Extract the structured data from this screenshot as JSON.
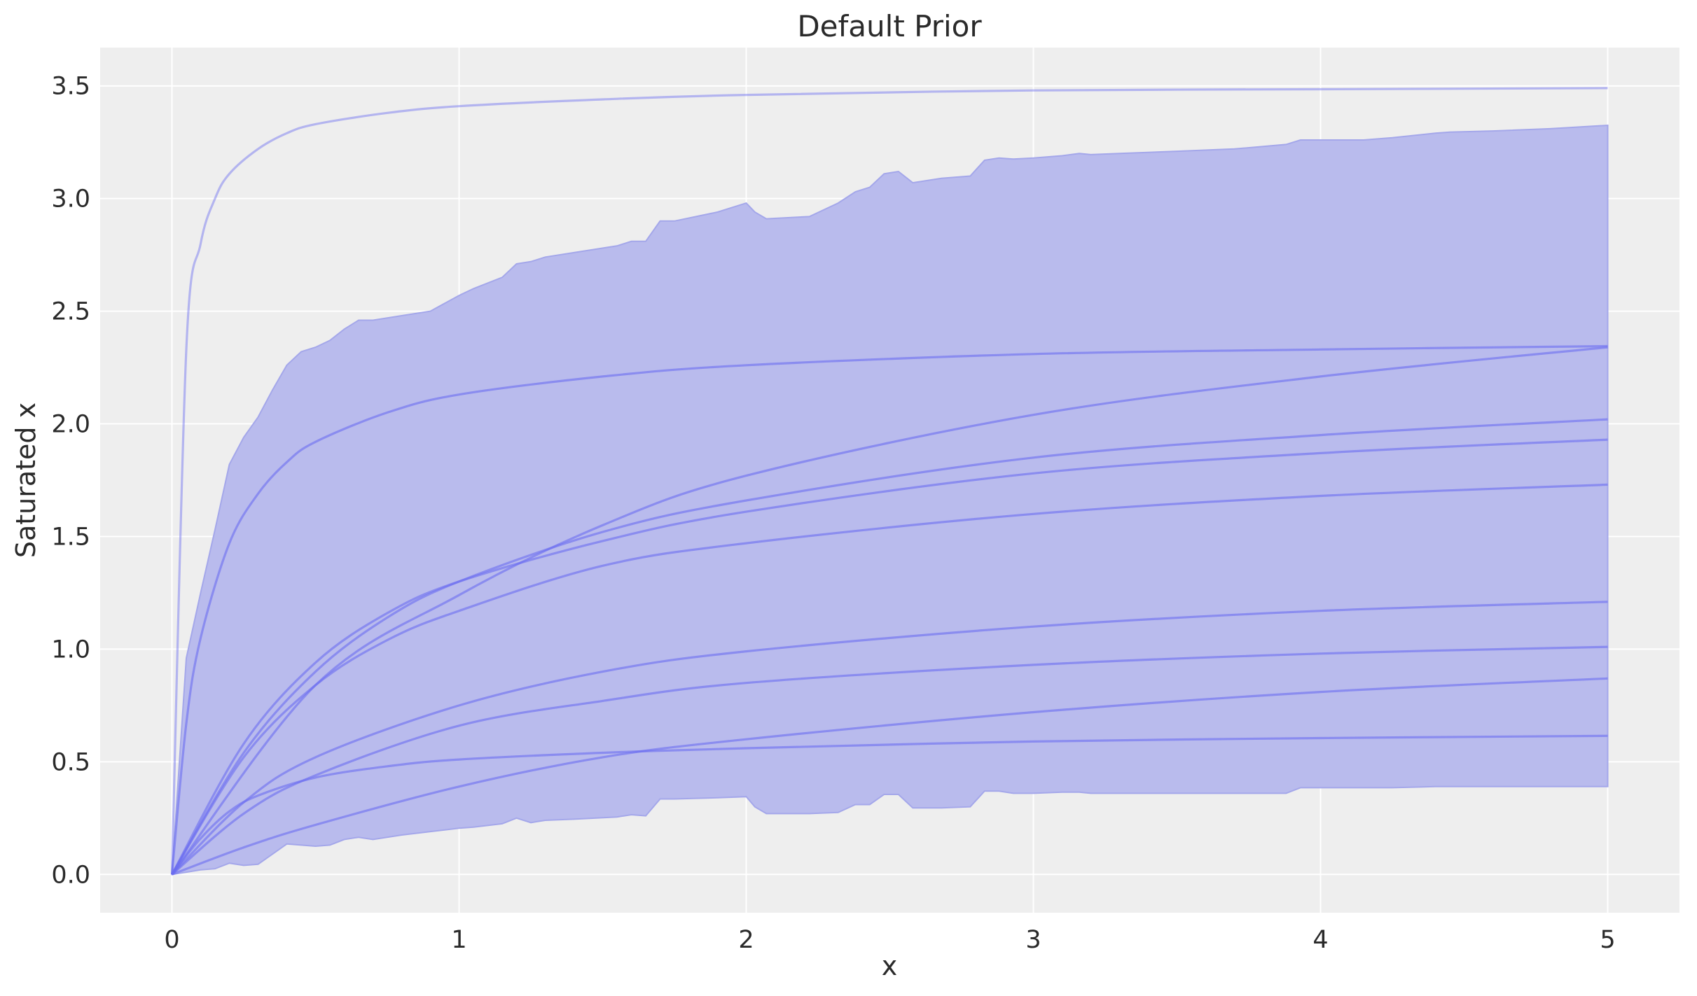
{
  "chart_data": {
    "type": "line",
    "title": "Default Prior",
    "xlabel": "x",
    "ylabel": "Saturated x",
    "xlim": [
      -0.25,
      5.25
    ],
    "ylim": [
      -0.17,
      3.67
    ],
    "grid": true,
    "x_ticks": [
      {
        "value": 0,
        "label": "0"
      },
      {
        "value": 1,
        "label": "1"
      },
      {
        "value": 2,
        "label": "2"
      },
      {
        "value": 3,
        "label": "3"
      },
      {
        "value": 4,
        "label": "4"
      },
      {
        "value": 5,
        "label": "5"
      }
    ],
    "y_ticks": [
      {
        "value": 0.0,
        "label": "0.0"
      },
      {
        "value": 0.5,
        "label": "0.5"
      },
      {
        "value": 1.0,
        "label": "1.0"
      },
      {
        "value": 1.5,
        "label": "1.5"
      },
      {
        "value": 2.0,
        "label": "2.0"
      },
      {
        "value": 2.5,
        "label": "2.5"
      },
      {
        "value": 3.0,
        "label": "3.0"
      },
      {
        "value": 3.5,
        "label": "3.5"
      }
    ],
    "colors": {
      "plot_background": "#eeeeee",
      "grid": "#ffffff",
      "band_fill": "#b9bbed",
      "band_edge": "#a4a7ea",
      "line": "#6b6cf0"
    },
    "band": {
      "x": [
        0,
        0.05,
        0.1,
        0.15,
        0.2,
        0.25,
        0.3,
        0.35,
        0.4,
        0.45,
        0.5,
        0.55,
        0.6,
        0.65,
        0.7,
        0.8,
        0.9,
        1.0,
        1.05,
        1.15,
        1.2,
        1.25,
        1.3,
        1.4,
        1.55,
        1.6,
        1.65,
        1.7,
        1.75,
        1.9,
        2.0,
        2.03,
        2.07,
        2.22,
        2.32,
        2.38,
        2.43,
        2.48,
        2.53,
        2.58,
        2.68,
        2.78,
        2.83,
        2.88,
        2.93,
        3.0,
        3.1,
        3.16,
        3.2,
        3.3,
        3.5,
        3.7,
        3.88,
        3.93,
        4.15,
        4.25,
        4.4,
        4.45,
        4.6,
        4.8,
        5.0
      ],
      "upper": [
        0,
        0.96,
        1.25,
        1.53,
        1.82,
        1.94,
        2.03,
        2.15,
        2.26,
        2.32,
        2.34,
        2.37,
        2.42,
        2.46,
        2.46,
        2.48,
        2.5,
        2.57,
        2.6,
        2.65,
        2.71,
        2.72,
        2.74,
        2.76,
        2.79,
        2.81,
        2.81,
        2.9,
        2.9,
        2.94,
        2.98,
        2.94,
        2.91,
        2.92,
        2.98,
        3.03,
        3.05,
        3.11,
        3.12,
        3.07,
        3.09,
        3.1,
        3.17,
        3.18,
        3.175,
        3.18,
        3.19,
        3.2,
        3.195,
        3.2,
        3.21,
        3.22,
        3.24,
        3.26,
        3.26,
        3.27,
        3.29,
        3.295,
        3.3,
        3.31,
        3.325
      ],
      "lower": [
        0,
        0.01,
        0.02,
        0.025,
        0.05,
        0.04,
        0.045,
        0.09,
        0.135,
        0.13,
        0.125,
        0.13,
        0.155,
        0.165,
        0.155,
        0.175,
        0.19,
        0.205,
        0.21,
        0.225,
        0.25,
        0.23,
        0.24,
        0.245,
        0.255,
        0.265,
        0.26,
        0.335,
        0.335,
        0.34,
        0.345,
        0.3,
        0.27,
        0.27,
        0.275,
        0.31,
        0.31,
        0.355,
        0.355,
        0.295,
        0.295,
        0.3,
        0.37,
        0.37,
        0.36,
        0.36,
        0.365,
        0.365,
        0.36,
        0.36,
        0.36,
        0.36,
        0.36,
        0.385,
        0.385,
        0.385,
        0.39,
        0.39,
        0.39,
        0.39,
        0.39
      ]
    },
    "curves": [
      {
        "x": [
          0,
          0.05,
          0.1,
          0.15,
          0.2,
          0.3,
          0.4,
          0.5,
          0.75,
          1.0,
          1.5,
          2.0,
          3.0,
          4.0,
          5.0
        ],
        "values": [
          0,
          2.33,
          2.8,
          3.0,
          3.11,
          3.22,
          3.29,
          3.33,
          3.38,
          3.41,
          3.44,
          3.46,
          3.48,
          3.485,
          3.49
        ],
        "faint": true
      },
      {
        "x": [
          0,
          0.05,
          0.1,
          0.2,
          0.3,
          0.4,
          0.5,
          0.75,
          1.0,
          1.5,
          2.0,
          3.0,
          4.0,
          5.0
        ],
        "values": [
          0,
          0.67,
          1.05,
          1.47,
          1.69,
          1.83,
          1.92,
          2.05,
          2.13,
          2.21,
          2.26,
          2.31,
          2.33,
          2.345
        ]
      },
      {
        "x": [
          0,
          0.5,
          1.0,
          1.5,
          2.0,
          3.0,
          4.0,
          5.0
        ],
        "values": [
          0,
          0.84,
          1.24,
          1.55,
          1.77,
          2.04,
          2.21,
          2.34
        ]
      },
      {
        "x": [
          0,
          0.25,
          0.5,
          0.75,
          1.0,
          1.5,
          2.0,
          3.0,
          4.0,
          5.0
        ],
        "values": [
          0,
          0.54,
          0.9,
          1.14,
          1.3,
          1.52,
          1.66,
          1.85,
          1.95,
          2.02
        ]
      },
      {
        "x": [
          0,
          0.25,
          0.5,
          0.75,
          1.0,
          1.5,
          2.0,
          3.0,
          4.0,
          5.0
        ],
        "values": [
          0,
          0.58,
          0.94,
          1.16,
          1.3,
          1.48,
          1.61,
          1.78,
          1.87,
          1.93
        ]
      },
      {
        "x": [
          0,
          0.25,
          0.5,
          0.75,
          1.0,
          1.5,
          2.0,
          3.0,
          4.0,
          5.0
        ],
        "values": [
          0,
          0.52,
          0.84,
          1.04,
          1.17,
          1.37,
          1.47,
          1.6,
          1.68,
          1.73
        ]
      },
      {
        "x": [
          0,
          0.25,
          0.5,
          1.0,
          1.5,
          2.0,
          3.0,
          4.0,
          5.0
        ],
        "values": [
          0,
          0.32,
          0.52,
          0.75,
          0.9,
          0.99,
          1.1,
          1.17,
          1.21
        ]
      },
      {
        "x": [
          0,
          0.25,
          0.5,
          1.0,
          1.5,
          2.0,
          3.0,
          4.0,
          5.0
        ],
        "values": [
          0,
          0.27,
          0.44,
          0.66,
          0.77,
          0.85,
          0.93,
          0.98,
          1.01
        ]
      },
      {
        "x": [
          0,
          0.1,
          0.2,
          0.3,
          0.5,
          0.75,
          1.0,
          1.5,
          2.0,
          3.0,
          4.0,
          5.0
        ],
        "values": [
          0,
          0.16,
          0.28,
          0.35,
          0.43,
          0.48,
          0.51,
          0.54,
          0.56,
          0.59,
          0.605,
          0.615
        ]
      },
      {
        "x": [
          0,
          0.25,
          0.5,
          1.0,
          1.5,
          2.0,
          3.0,
          4.0,
          5.0
        ],
        "values": [
          0,
          0.12,
          0.22,
          0.39,
          0.52,
          0.6,
          0.72,
          0.81,
          0.87
        ]
      }
    ]
  }
}
